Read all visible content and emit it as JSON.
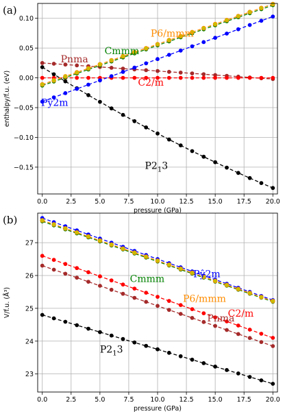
{
  "chart_data": [
    {
      "type": "line",
      "panel_label": "(a)",
      "xlabel": "pressure (GPa)",
      "ylabel": "enthalpy/f.u. (eV)",
      "xlim": [
        -0.4,
        20.4
      ],
      "ylim": [
        -0.195,
        0.125
      ],
      "xticks": [
        "0.0",
        "2.5",
        "5.0",
        "7.5",
        "10.0",
        "12.5",
        "15.0",
        "17.5",
        "20.0"
      ],
      "yticks": [
        "−0.15",
        "−0.10",
        "−0.05",
        "0.00",
        "0.05",
        "0.10"
      ],
      "ytick_values": [
        -0.15,
        -0.1,
        -0.05,
        0.0,
        0.05,
        0.1
      ],
      "grid": true,
      "series": [
        {
          "name": "P2₁",
          "label_sub": "1",
          "label_tail": "3",
          "label_head": "P2",
          "color": "#000000",
          "x": [
            0,
            20
          ],
          "values": [
            0.018,
            -0.185
          ],
          "curve": -0.01,
          "label_at": [
            8.9,
            -0.153
          ]
        },
        {
          "name": "Pnma",
          "label_head": "Pnma",
          "color": "#a52a2a",
          "x": [
            0,
            20
          ],
          "values": [
            0.025,
            -0.002
          ],
          "curve": 0.0,
          "label_at": [
            1.6,
            0.026
          ]
        },
        {
          "name": "C2/m",
          "label_head": "C2/m",
          "color": "#ff0000",
          "x": [
            0,
            20
          ],
          "values": [
            0.0,
            0.0
          ],
          "curve": 0.0,
          "label_at": [
            8.3,
            -0.013
          ]
        },
        {
          "name": "Pŷ2m",
          "label_head": "Pŷ2m",
          "color": "#0000ff",
          "x": [
            0,
            20
          ],
          "values": [
            -0.04,
            0.103
          ],
          "curve": 0.0,
          "label_at": [
            -0.1,
            -0.047
          ]
        },
        {
          "name": "Cmmm",
          "label_head": "Cmmm",
          "color": "#008000",
          "x": [
            0,
            20
          ],
          "values": [
            -0.013,
            0.122
          ],
          "curve": 0.0,
          "label_at": [
            5.4,
            0.04
          ]
        },
        {
          "name": "P6/mmm",
          "label_head": "P6/mmm",
          "color": "#ff8c00",
          "x": [
            0,
            20
          ],
          "values": [
            -0.011,
            0.124
          ],
          "curve": 0.0,
          "label_at": [
            9.4,
            0.069
          ]
        }
      ]
    },
    {
      "type": "line",
      "panel_label": "(b)",
      "xlabel": "pressure (GPa)",
      "ylabel": "V/f.u. (Å³)",
      "xlim": [
        -0.4,
        20.4
      ],
      "ylim": [
        22.45,
        27.9
      ],
      "xticks": [
        "0.0",
        "2.5",
        "5.0",
        "7.5",
        "10.0",
        "12.5",
        "15.0",
        "17.5",
        "20.0"
      ],
      "yticks": [
        "23",
        "24",
        "25",
        "26",
        "27"
      ],
      "ytick_values": [
        23,
        24,
        25,
        26,
        27
      ],
      "grid": true,
      "series": [
        {
          "name": "P2₁",
          "label_sub": "1",
          "label_tail": "3",
          "label_head": "P2",
          "color": "#000000",
          "x": [
            0,
            20
          ],
          "values": [
            24.8,
            22.7
          ],
          "curve": 0.0,
          "label_at": [
            5.0,
            23.65
          ]
        },
        {
          "name": "Pnma",
          "label_head": "Pnma",
          "color": "#a52a2a",
          "x": [
            0,
            20
          ],
          "values": [
            26.3,
            23.85
          ],
          "curve": 0.0,
          "label_at": [
            14.3,
            24.6
          ]
        },
        {
          "name": "C2/m",
          "label_head": "C2/m",
          "color": "#ff0000",
          "x": [
            0,
            20
          ],
          "values": [
            26.6,
            24.1
          ],
          "curve": 0.0,
          "label_at": [
            16.1,
            24.75
          ]
        },
        {
          "name": "Pŷ2m",
          "label_head": "Pŷ2m",
          "color": "#0000ff",
          "x": [
            0,
            20
          ],
          "values": [
            27.75,
            25.25
          ],
          "curve": 0.0,
          "label_at": [
            13.1,
            25.95
          ]
        },
        {
          "name": "Cmmm",
          "label_head": "Cmmm",
          "color": "#008000",
          "x": [
            0,
            20
          ],
          "values": [
            27.65,
            25.2
          ],
          "curve": 0.0,
          "label_at": [
            7.6,
            25.8
          ]
        },
        {
          "name": "P6/mmm",
          "label_head": "P6/mmm",
          "color": "#ff8c00",
          "x": [
            0,
            20
          ],
          "values": [
            27.68,
            25.22
          ],
          "curve": 0.0,
          "label_at": [
            12.2,
            25.2
          ]
        }
      ]
    }
  ]
}
